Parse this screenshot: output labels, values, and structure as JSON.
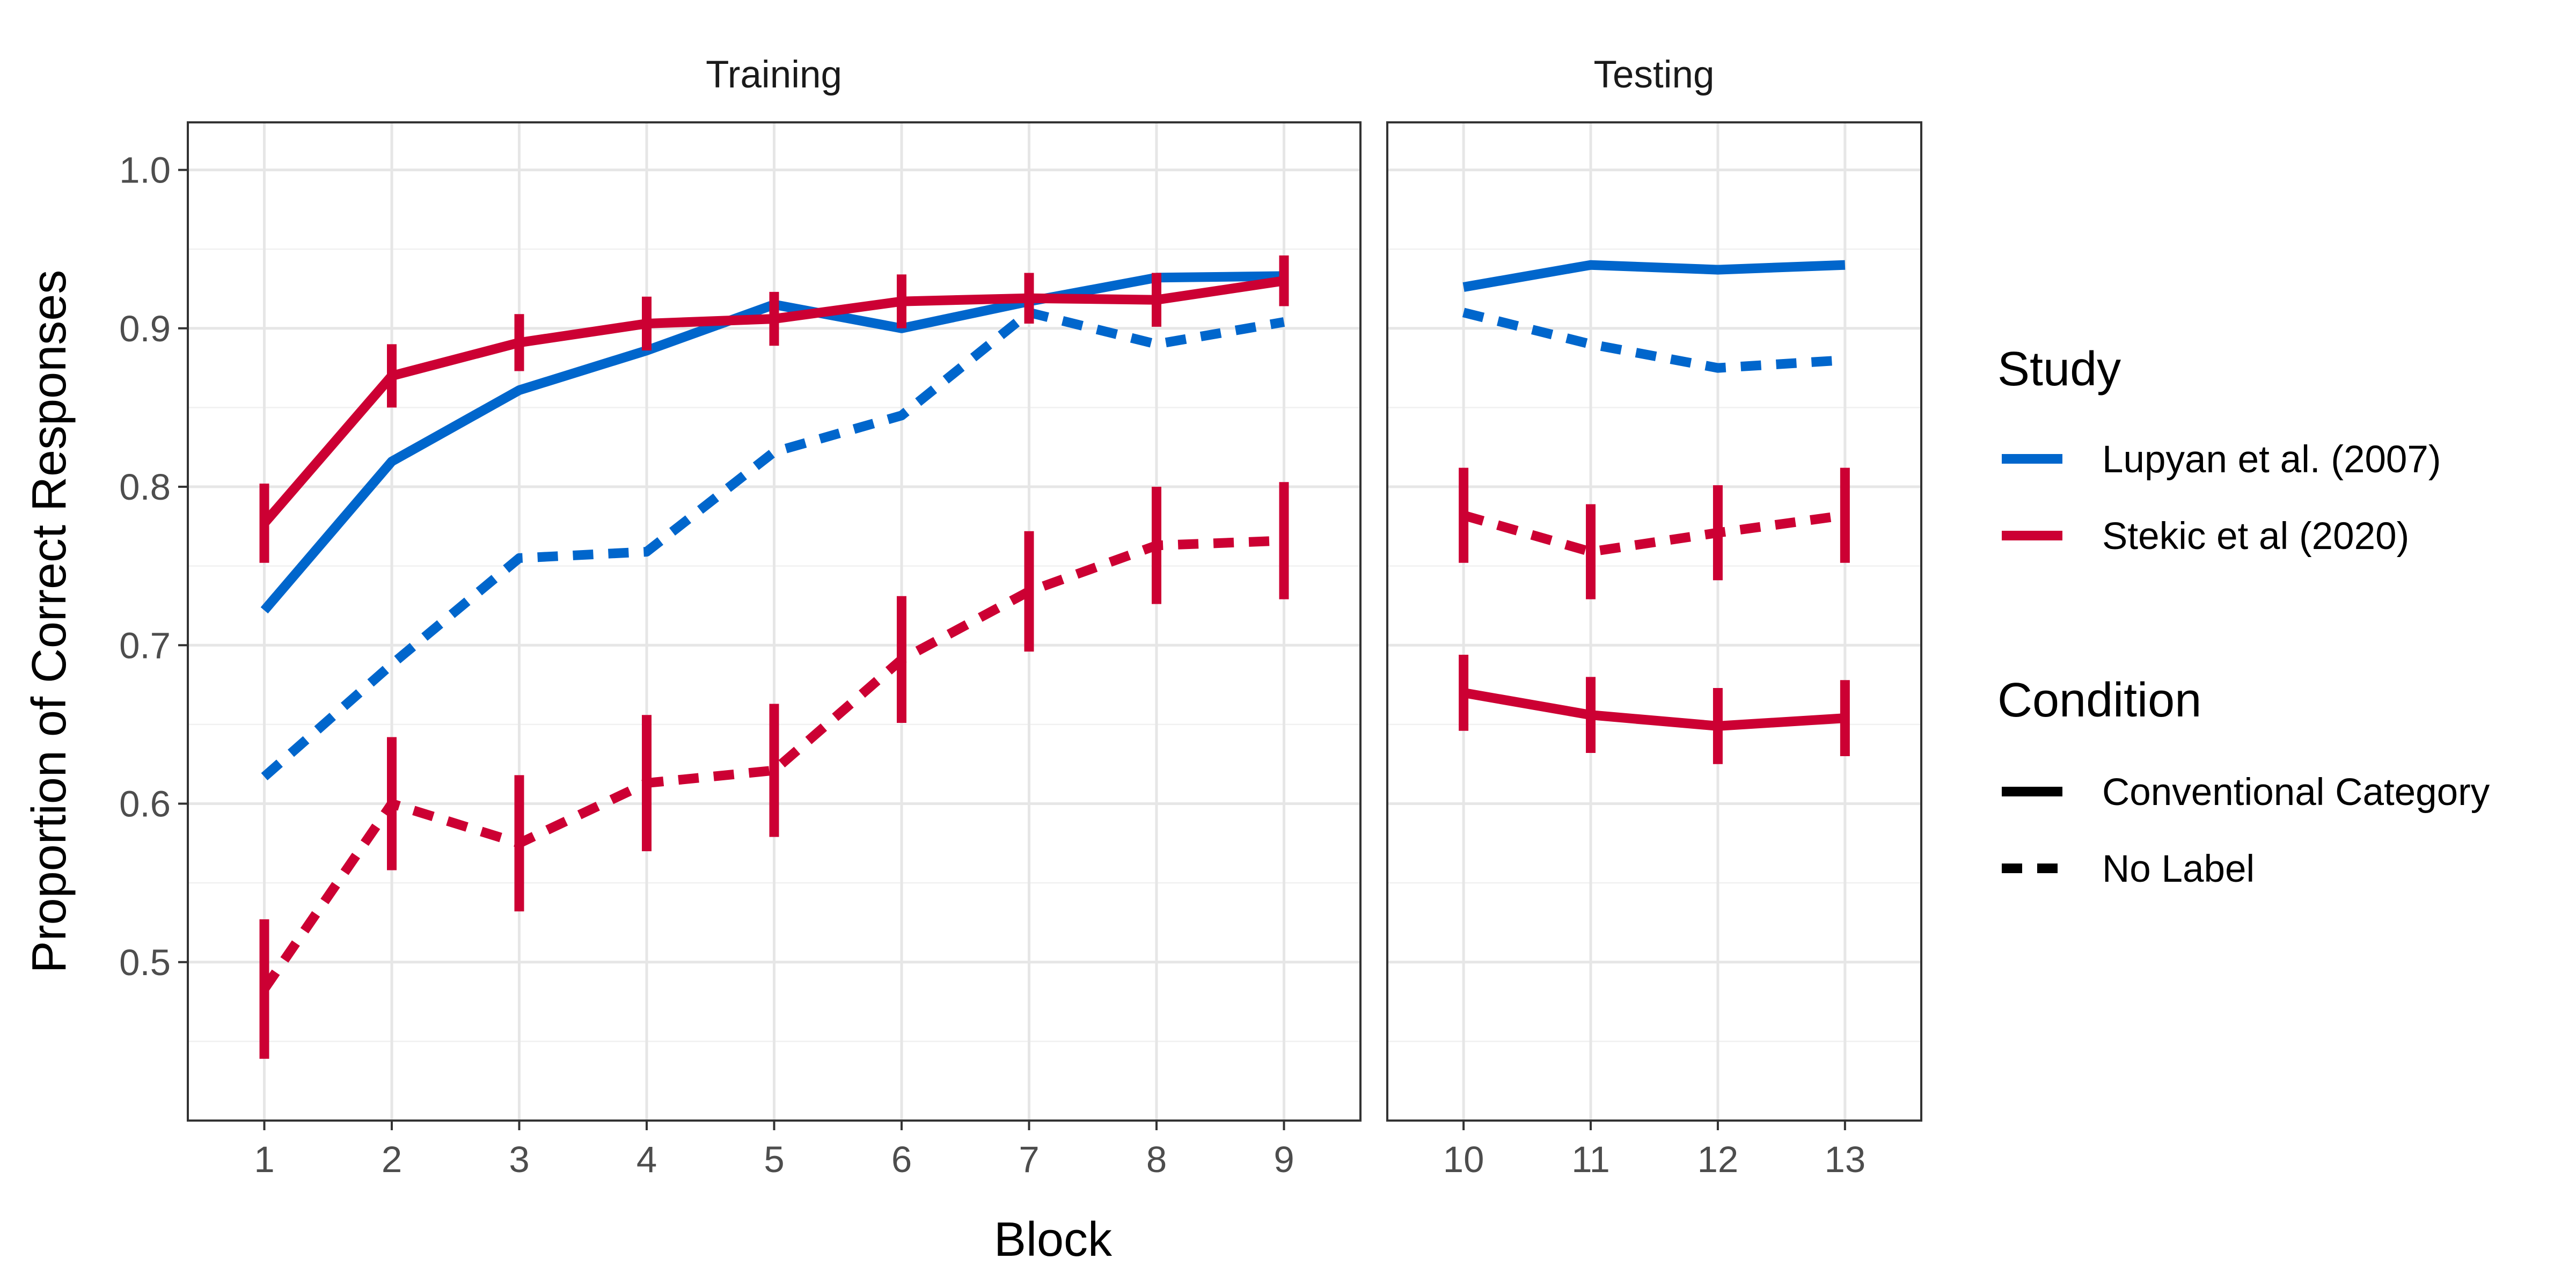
{
  "chart_data": {
    "type": "line",
    "xlabel": "Block",
    "ylabel": "Proportion of Correct Responses",
    "ylim": [
      0.4,
      1.03
    ],
    "y_ticks": [
      0.5,
      0.6,
      0.7,
      0.8,
      0.9,
      1.0
    ],
    "y_tick_labels": [
      "0.5",
      "0.6",
      "0.7",
      "0.8",
      "0.9",
      "1.0"
    ],
    "grid": true,
    "legend_placement": "right",
    "panels": [
      {
        "title": "Training",
        "x_ticks": [
          1,
          2,
          3,
          4,
          5,
          6,
          7,
          8,
          9
        ],
        "x_tick_labels": [
          "1",
          "2",
          "3",
          "4",
          "5",
          "6",
          "7",
          "8",
          "9"
        ],
        "xlim": [
          0.4,
          9.6
        ]
      },
      {
        "title": "Testing",
        "x_ticks": [
          10,
          11,
          12,
          13
        ],
        "x_tick_labels": [
          "10",
          "11",
          "12",
          "13"
        ],
        "xlim": [
          9.4,
          13.6
        ]
      }
    ],
    "legend": {
      "study_title": "Study",
      "condition_title": "Condition",
      "studies": [
        {
          "label": "Lupyan et al. (2007)",
          "color": "#0066CC"
        },
        {
          "label": "Stekic et al (2020)",
          "color": "#CC0033"
        }
      ],
      "conditions": [
        {
          "label": "Conventional Category",
          "dash": "solid"
        },
        {
          "label": "No Label",
          "dash": "dashed"
        }
      ]
    },
    "series": [
      {
        "study": "Lupyan et al. (2007)",
        "condition": "Conventional Category",
        "color": "#0066CC",
        "dash": "solid",
        "x": [
          1,
          2,
          3,
          4,
          5,
          6,
          7,
          8,
          9,
          10,
          11,
          12,
          13
        ],
        "y": [
          0.722,
          0.816,
          0.861,
          0.886,
          0.915,
          0.9,
          0.917,
          0.932,
          0.933,
          0.926,
          0.94,
          0.937,
          0.94
        ]
      },
      {
        "study": "Lupyan et al. (2007)",
        "condition": "No Label",
        "color": "#0066CC",
        "dash": "dashed",
        "x": [
          1,
          2,
          3,
          4,
          5,
          6,
          7,
          8,
          9,
          10,
          11,
          12,
          13
        ],
        "y": [
          0.617,
          0.688,
          0.755,
          0.759,
          0.822,
          0.845,
          0.91,
          0.89,
          0.904,
          0.91,
          0.89,
          0.875,
          0.88
        ]
      },
      {
        "study": "Stekic et al (2020)",
        "condition": "Conventional Category",
        "color": "#CC0033",
        "dash": "solid",
        "x": [
          1,
          2,
          3,
          4,
          5,
          6,
          7,
          8,
          9,
          10,
          11,
          12,
          13
        ],
        "y": [
          0.777,
          0.87,
          0.891,
          0.903,
          0.906,
          0.917,
          0.919,
          0.918,
          0.93,
          0.67,
          0.656,
          0.649,
          0.654
        ],
        "err": [
          0.025,
          0.02,
          0.018,
          0.017,
          0.017,
          0.017,
          0.016,
          0.017,
          0.016,
          0.024,
          0.024,
          0.024,
          0.024
        ]
      },
      {
        "study": "Stekic et al (2020)",
        "condition": "No Label",
        "color": "#CC0033",
        "dash": "dashed",
        "x": [
          1,
          2,
          3,
          4,
          5,
          6,
          7,
          8,
          9,
          10,
          11,
          12,
          13
        ],
        "y": [
          0.483,
          0.6,
          0.575,
          0.613,
          0.621,
          0.691,
          0.734,
          0.763,
          0.766,
          0.782,
          0.759,
          0.771,
          0.782
        ],
        "err": [
          0.044,
          0.042,
          0.043,
          0.043,
          0.042,
          0.04,
          0.038,
          0.037,
          0.037,
          0.03,
          0.03,
          0.03,
          0.03
        ]
      }
    ]
  }
}
